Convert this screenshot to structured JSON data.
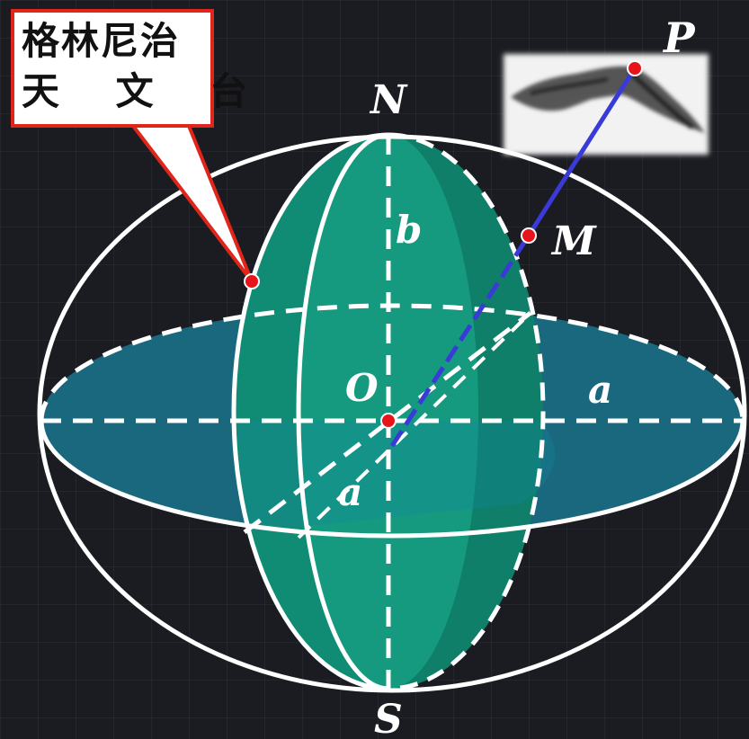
{
  "callout": {
    "line1": "格林尼治",
    "line2": "天 文 台"
  },
  "labels": {
    "north": "N",
    "south": "S",
    "origin": "O",
    "point_p": "P",
    "point_m": "M",
    "semi_axis_b": "b",
    "semi_axis_a_horizontal": "a",
    "semi_axis_a_diagonal": "a"
  },
  "colors": {
    "background": "#1b1c22",
    "equatorial_plane": "#1a6f86",
    "meridian_section": "#17a88a",
    "outline": "#ffffff",
    "line_pm": "#3a3ad8",
    "point_marker": "#e8141b",
    "callout_border": "#e0261a"
  }
}
